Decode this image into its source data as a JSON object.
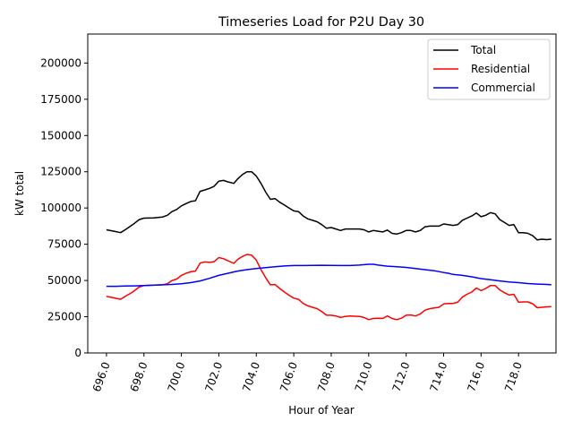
{
  "chart_data": {
    "type": "line",
    "title": "Timeseries Load for P2U   Day 30",
    "xlabel": "Hour of Year",
    "ylabel": "kW total",
    "xlim": [
      695.0,
      720.0
    ],
    "ylim": [
      0,
      220000
    ],
    "xticks": [
      696,
      698,
      700,
      702,
      704,
      706,
      708,
      710,
      712,
      714,
      716,
      718
    ],
    "xtick_labels": [
      "696.0",
      "698.0",
      "700.0",
      "702.0",
      "704.0",
      "706.0",
      "708.0",
      "710.0",
      "712.0",
      "714.0",
      "716.0",
      "718.0"
    ],
    "yticks": [
      0,
      25000,
      50000,
      75000,
      100000,
      125000,
      150000,
      175000,
      200000
    ],
    "ytick_labels": [
      "0",
      "25000",
      "50000",
      "75000",
      "100000",
      "125000",
      "150000",
      "175000",
      "200000"
    ],
    "legend_position": "top-right",
    "series": [
      {
        "name": "Total",
        "color": "#000000",
        "points": [
          [
            696.0,
            85000
          ],
          [
            696.4,
            84000
          ],
          [
            696.75,
            83000
          ],
          [
            697.0,
            85000
          ],
          [
            697.4,
            88500
          ],
          [
            697.75,
            92000
          ],
          [
            698.0,
            93000
          ],
          [
            698.5,
            93200
          ],
          [
            699.0,
            93800
          ],
          [
            699.25,
            95000
          ],
          [
            699.5,
            97500
          ],
          [
            699.75,
            99000
          ],
          [
            700.0,
            101500
          ],
          [
            700.25,
            103000
          ],
          [
            700.5,
            104500
          ],
          [
            700.75,
            105000
          ],
          [
            701.0,
            111500
          ],
          [
            701.25,
            112500
          ],
          [
            701.5,
            113500
          ],
          [
            701.75,
            115000
          ],
          [
            702.0,
            118500
          ],
          [
            702.25,
            119000
          ],
          [
            702.5,
            118000
          ],
          [
            702.8,
            117000
          ],
          [
            703.0,
            120000
          ],
          [
            703.25,
            123000
          ],
          [
            703.5,
            125000
          ],
          [
            703.75,
            125000
          ],
          [
            704.0,
            122000
          ],
          [
            704.25,
            117000
          ],
          [
            704.5,
            111000
          ],
          [
            704.75,
            106000
          ],
          [
            705.0,
            106500
          ],
          [
            705.25,
            104000
          ],
          [
            705.5,
            102000
          ],
          [
            705.75,
            100000
          ],
          [
            706.0,
            98000
          ],
          [
            706.25,
            97500
          ],
          [
            706.5,
            94500
          ],
          [
            706.75,
            92500
          ],
          [
            707.0,
            91500
          ],
          [
            707.25,
            90500
          ],
          [
            707.5,
            88500
          ],
          [
            707.75,
            86000
          ],
          [
            708.0,
            86500
          ],
          [
            708.25,
            85500
          ],
          [
            708.5,
            84500
          ],
          [
            708.75,
            85500
          ],
          [
            709.0,
            85500
          ],
          [
            709.5,
            85500
          ],
          [
            709.75,
            85000
          ],
          [
            710.0,
            83500
          ],
          [
            710.25,
            84500
          ],
          [
            710.5,
            84000
          ],
          [
            710.75,
            83500
          ],
          [
            711.0,
            84800
          ],
          [
            711.25,
            82500
          ],
          [
            711.5,
            82000
          ],
          [
            711.75,
            83000
          ],
          [
            712.0,
            84500
          ],
          [
            712.25,
            84500
          ],
          [
            712.5,
            83500
          ],
          [
            712.75,
            84500
          ],
          [
            713.0,
            87000
          ],
          [
            713.25,
            87500
          ],
          [
            713.5,
            87500
          ],
          [
            713.75,
            87500
          ],
          [
            714.0,
            89000
          ],
          [
            714.25,
            88500
          ],
          [
            714.5,
            88000
          ],
          [
            714.75,
            88500
          ],
          [
            715.0,
            91500
          ],
          [
            715.25,
            93000
          ],
          [
            715.5,
            94500
          ],
          [
            715.75,
            96500
          ],
          [
            716.0,
            94000
          ],
          [
            716.25,
            95000
          ],
          [
            716.5,
            96800
          ],
          [
            716.75,
            96000
          ],
          [
            717.0,
            92000
          ],
          [
            717.25,
            90000
          ],
          [
            717.5,
            88000
          ],
          [
            717.75,
            88500
          ],
          [
            718.0,
            83000
          ],
          [
            718.25,
            83000
          ],
          [
            718.5,
            82500
          ],
          [
            718.75,
            81000
          ],
          [
            719.0,
            78000
          ],
          [
            719.25,
            78500
          ],
          [
            719.5,
            78200
          ],
          [
            719.75,
            78500
          ]
        ]
      },
      {
        "name": "Residential",
        "color": "#ff0000",
        "points": [
          [
            696.0,
            39000
          ],
          [
            696.4,
            38000
          ],
          [
            696.75,
            37000
          ],
          [
            697.0,
            39000
          ],
          [
            697.4,
            42000
          ],
          [
            697.75,
            45500
          ],
          [
            698.0,
            46500
          ],
          [
            698.5,
            46800
          ],
          [
            699.0,
            47000
          ],
          [
            699.25,
            47800
          ],
          [
            699.5,
            50000
          ],
          [
            699.75,
            51000
          ],
          [
            700.0,
            53500
          ],
          [
            700.25,
            55000
          ],
          [
            700.5,
            56000
          ],
          [
            700.75,
            56500
          ],
          [
            701.0,
            62000
          ],
          [
            701.25,
            62800
          ],
          [
            701.5,
            62500
          ],
          [
            701.75,
            63000
          ],
          [
            702.0,
            65800
          ],
          [
            702.25,
            65000
          ],
          [
            702.5,
            63500
          ],
          [
            702.8,
            61800
          ],
          [
            703.0,
            64500
          ],
          [
            703.25,
            66500
          ],
          [
            703.5,
            68000
          ],
          [
            703.75,
            67500
          ],
          [
            704.0,
            64000
          ],
          [
            704.25,
            57500
          ],
          [
            704.5,
            52000
          ],
          [
            704.75,
            47000
          ],
          [
            705.0,
            47200
          ],
          [
            705.25,
            44500
          ],
          [
            705.5,
            42000
          ],
          [
            705.75,
            39800
          ],
          [
            706.0,
            37800
          ],
          [
            706.25,
            37000
          ],
          [
            706.5,
            34200
          ],
          [
            706.75,
            32500
          ],
          [
            707.0,
            31500
          ],
          [
            707.25,
            30500
          ],
          [
            707.5,
            28500
          ],
          [
            707.75,
            26000
          ],
          [
            708.0,
            26000
          ],
          [
            708.25,
            25500
          ],
          [
            708.5,
            24500
          ],
          [
            708.75,
            25200
          ],
          [
            709.0,
            25500
          ],
          [
            709.5,
            25200
          ],
          [
            709.75,
            24500
          ],
          [
            710.0,
            23000
          ],
          [
            710.25,
            23800
          ],
          [
            710.5,
            24000
          ],
          [
            710.75,
            23800
          ],
          [
            711.0,
            25500
          ],
          [
            711.25,
            23800
          ],
          [
            711.5,
            23000
          ],
          [
            711.75,
            24000
          ],
          [
            712.0,
            26000
          ],
          [
            712.25,
            26200
          ],
          [
            712.5,
            25500
          ],
          [
            712.75,
            26800
          ],
          [
            713.0,
            29500
          ],
          [
            713.25,
            30500
          ],
          [
            713.5,
            31000
          ],
          [
            713.75,
            31500
          ],
          [
            714.0,
            33800
          ],
          [
            714.25,
            34200
          ],
          [
            714.5,
            34200
          ],
          [
            714.75,
            35000
          ],
          [
            715.0,
            38500
          ],
          [
            715.25,
            40500
          ],
          [
            715.5,
            42000
          ],
          [
            715.75,
            44800
          ],
          [
            716.0,
            43000
          ],
          [
            716.25,
            44500
          ],
          [
            716.5,
            46500
          ],
          [
            716.75,
            46500
          ],
          [
            717.0,
            43500
          ],
          [
            717.25,
            41500
          ],
          [
            717.5,
            40000
          ],
          [
            717.75,
            40500
          ],
          [
            718.0,
            35000
          ],
          [
            718.25,
            35200
          ],
          [
            718.5,
            35200
          ],
          [
            718.75,
            34000
          ],
          [
            719.0,
            31200
          ],
          [
            719.25,
            31500
          ],
          [
            719.5,
            31800
          ],
          [
            719.75,
            32000
          ]
        ]
      },
      {
        "name": "Commercial",
        "color": "#0000ff",
        "points": [
          [
            696.0,
            46000
          ],
          [
            696.5,
            46000
          ],
          [
            697.0,
            46200
          ],
          [
            697.5,
            46300
          ],
          [
            698.0,
            46500
          ],
          [
            698.5,
            46700
          ],
          [
            699.0,
            47000
          ],
          [
            699.5,
            47300
          ],
          [
            700.0,
            47700
          ],
          [
            700.5,
            48500
          ],
          [
            701.0,
            49700
          ],
          [
            701.5,
            51500
          ],
          [
            702.0,
            53500
          ],
          [
            702.5,
            55000
          ],
          [
            703.0,
            56500
          ],
          [
            703.5,
            57500
          ],
          [
            704.0,
            58200
          ],
          [
            704.5,
            58900
          ],
          [
            705.0,
            59500
          ],
          [
            705.5,
            60000
          ],
          [
            706.0,
            60300
          ],
          [
            706.5,
            60300
          ],
          [
            707.0,
            60400
          ],
          [
            707.5,
            60500
          ],
          [
            708.0,
            60400
          ],
          [
            708.5,
            60300
          ],
          [
            709.0,
            60300
          ],
          [
            709.5,
            60600
          ],
          [
            710.0,
            61200
          ],
          [
            710.25,
            61200
          ],
          [
            710.5,
            60600
          ],
          [
            711.0,
            59900
          ],
          [
            711.5,
            59500
          ],
          [
            712.0,
            59000
          ],
          [
            712.5,
            58200
          ],
          [
            713.0,
            57500
          ],
          [
            713.5,
            56700
          ],
          [
            714.0,
            55500
          ],
          [
            714.25,
            55000
          ],
          [
            714.5,
            54200
          ],
          [
            715.0,
            53500
          ],
          [
            715.5,
            52500
          ],
          [
            716.0,
            51300
          ],
          [
            716.5,
            50500
          ],
          [
            717.0,
            49700
          ],
          [
            717.5,
            49000
          ],
          [
            718.0,
            48500
          ],
          [
            718.5,
            47900
          ],
          [
            719.0,
            47500
          ],
          [
            719.5,
            47300
          ],
          [
            719.75,
            47000
          ]
        ]
      }
    ]
  }
}
